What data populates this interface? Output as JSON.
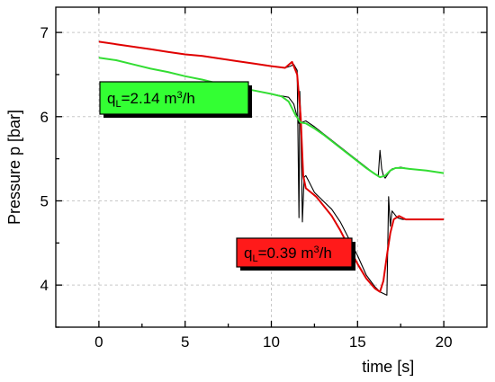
{
  "chart_data": {
    "type": "line",
    "xlabel": "time [s]",
    "ylabel": "Pressure p [bar]",
    "xlim": [
      -2.5,
      22.5
    ],
    "ylim": [
      3.5,
      7.3
    ],
    "xticks": [
      0,
      5,
      10,
      15,
      20
    ],
    "yticks": [
      4,
      5,
      6,
      7
    ],
    "grid": true,
    "annotations": [
      {
        "name": "annotation-green",
        "label_base": "q",
        "label_sub": "L",
        "label_mid": "=2.14 m",
        "label_sup": "3",
        "label_end": "/h",
        "color": "#33ff33"
      },
      {
        "name": "annotation-red",
        "label_base": "q",
        "label_sub": "L",
        "label_mid": "=0.39 m",
        "label_sup": "3",
        "label_end": "/h",
        "color": "#ff1a1a"
      }
    ],
    "series": [
      {
        "color": "#000000",
        "width": 1.1,
        "x": [
          0,
          1,
          2,
          3,
          4,
          5,
          6,
          7,
          8,
          9,
          10,
          10.8,
          11.1,
          11.3,
          11.5,
          11.6,
          11.65,
          11.7,
          11.8,
          11.9,
          12.0,
          12.2,
          12.5,
          13,
          13.5,
          14,
          14.5,
          15,
          15.5,
          16.0,
          16.3,
          16.5,
          16.6,
          16.7,
          16.8,
          16.9,
          17.0,
          17.3,
          17.6,
          18,
          19,
          20
        ],
        "y": [
          6.89,
          6.86,
          6.83,
          6.8,
          6.77,
          6.74,
          6.72,
          6.69,
          6.66,
          6.63,
          6.6,
          6.58,
          6.6,
          6.62,
          6.55,
          4.8,
          6.3,
          6.0,
          4.75,
          5.28,
          5.3,
          5.22,
          5.1,
          5.0,
          4.9,
          4.75,
          4.55,
          4.35,
          4.12,
          3.98,
          3.92,
          3.9,
          3.89,
          3.88,
          5.05,
          4.7,
          4.88,
          4.8,
          4.78,
          4.78,
          4.78,
          4.78
        ]
      },
      {
        "color": "#000000",
        "width": 1.1,
        "x": [
          0,
          1,
          2,
          3,
          4,
          5,
          6,
          7,
          8,
          9,
          10,
          10.5,
          11.0,
          11.3,
          11.6,
          12.0,
          12.5,
          13,
          13.5,
          14,
          14.5,
          15,
          15.5,
          16.0,
          16.2,
          16.3,
          16.4,
          16.5,
          16.6,
          16.8,
          17.0,
          17.5,
          18,
          19,
          20
        ],
        "y": [
          6.7,
          6.67,
          6.62,
          6.57,
          6.53,
          6.48,
          6.44,
          6.39,
          6.35,
          6.31,
          6.27,
          6.25,
          6.23,
          6.15,
          5.92,
          5.95,
          5.88,
          5.8,
          5.72,
          5.64,
          5.56,
          5.48,
          5.4,
          5.32,
          5.3,
          5.6,
          5.38,
          5.3,
          5.27,
          5.33,
          5.38,
          5.4,
          5.38,
          5.36,
          5.33
        ]
      },
      {
        "color": "#e00000",
        "width": 2,
        "x": [
          0,
          1,
          2,
          3,
          4,
          5,
          6,
          7,
          8,
          9,
          10,
          10.8,
          11.2,
          11.5,
          11.7,
          11.85,
          12.0,
          12.3,
          12.6,
          13,
          13.5,
          14,
          14.5,
          15,
          15.5,
          16.0,
          16.3,
          16.5,
          16.7,
          16.9,
          17.1,
          17.4,
          17.8,
          18.5,
          19,
          20
        ],
        "y": [
          6.89,
          6.86,
          6.83,
          6.8,
          6.77,
          6.74,
          6.72,
          6.69,
          6.66,
          6.63,
          6.6,
          6.58,
          6.65,
          6.5,
          6.0,
          5.3,
          5.15,
          5.1,
          5.05,
          4.95,
          4.82,
          4.65,
          4.45,
          4.25,
          4.08,
          3.96,
          3.92,
          4.05,
          4.35,
          4.62,
          4.78,
          4.82,
          4.78,
          4.78,
          4.78,
          4.78
        ]
      },
      {
        "color": "#33dd33",
        "width": 2,
        "x": [
          0,
          1,
          2,
          3,
          4,
          5,
          6,
          7,
          8,
          9,
          10,
          10.6,
          11.0,
          11.4,
          11.7,
          12.0,
          12.5,
          13,
          13.5,
          14,
          14.5,
          15,
          15.5,
          16.0,
          16.3,
          16.6,
          16.9,
          17.2,
          17.6,
          18,
          19,
          20
        ],
        "y": [
          6.7,
          6.67,
          6.62,
          6.57,
          6.53,
          6.48,
          6.44,
          6.39,
          6.35,
          6.31,
          6.27,
          6.24,
          6.18,
          6.02,
          5.93,
          5.92,
          5.86,
          5.79,
          5.71,
          5.63,
          5.55,
          5.47,
          5.39,
          5.32,
          5.28,
          5.3,
          5.36,
          5.39,
          5.39,
          5.38,
          5.36,
          5.33
        ]
      }
    ]
  }
}
